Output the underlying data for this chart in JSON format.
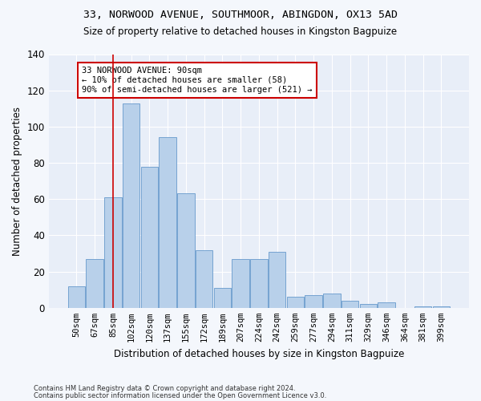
{
  "title1": "33, NORWOOD AVENUE, SOUTHMOOR, ABINGDON, OX13 5AD",
  "title2": "Size of property relative to detached houses in Kingston Bagpuize",
  "xlabel": "Distribution of detached houses by size in Kingston Bagpuize",
  "ylabel": "Number of detached properties",
  "bar_labels": [
    "50sqm",
    "67sqm",
    "85sqm",
    "102sqm",
    "120sqm",
    "137sqm",
    "155sqm",
    "172sqm",
    "189sqm",
    "207sqm",
    "224sqm",
    "242sqm",
    "259sqm",
    "277sqm",
    "294sqm",
    "311sqm",
    "329sqm",
    "346sqm",
    "364sqm",
    "381sqm",
    "399sqm"
  ],
  "bar_values": [
    12,
    27,
    61,
    113,
    78,
    94,
    63,
    32,
    11,
    27,
    27,
    31,
    6,
    7,
    8,
    4,
    2,
    3,
    0,
    1,
    1
  ],
  "bar_color": "#b8d0ea",
  "bar_edge_color": "#6699cc",
  "vline_x": 2,
  "vline_color": "#cc0000",
  "annotation_text": "33 NORWOOD AVENUE: 90sqm\n← 10% of detached houses are smaller (58)\n90% of semi-detached houses are larger (521) →",
  "annotation_box_color": "#ffffff",
  "annotation_box_edge": "#cc0000",
  "footer1": "Contains HM Land Registry data © Crown copyright and database right 2024.",
  "footer2": "Contains public sector information licensed under the Open Government Licence v3.0.",
  "ylim": [
    0,
    140
  ],
  "bg_color": "#f4f7fc",
  "plot_bg": "#e8eef8"
}
